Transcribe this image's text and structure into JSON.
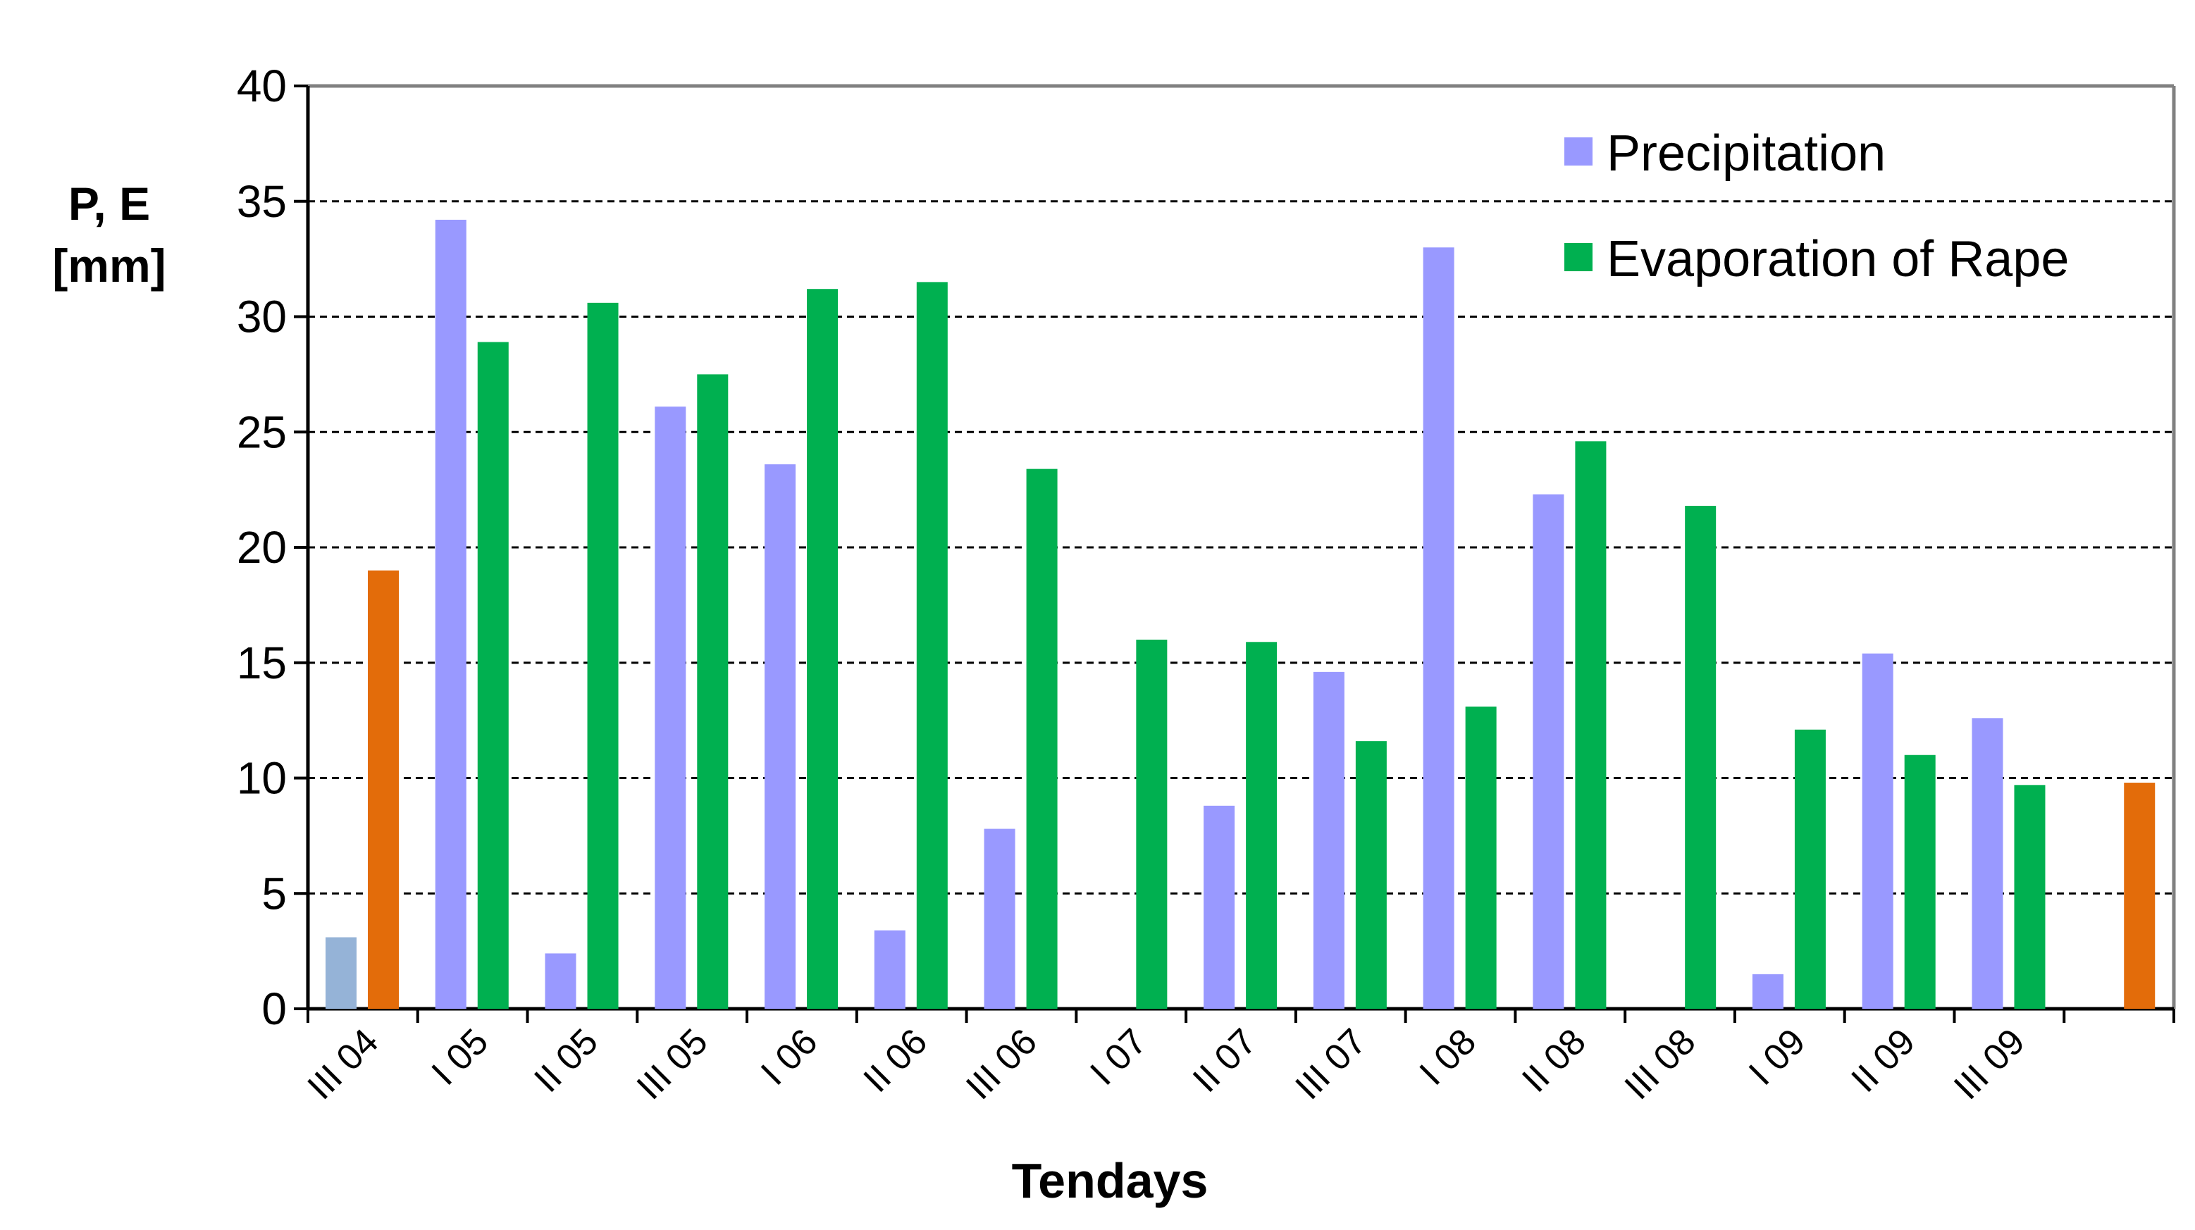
{
  "chart_data": {
    "type": "bar",
    "title": "",
    "xlabel": "Tendays",
    "ylabel_lines": [
      "P, E",
      "[mm]"
    ],
    "ylim": [
      0,
      40
    ],
    "yticks": [
      0,
      5,
      10,
      15,
      20,
      25,
      30,
      35,
      40
    ],
    "grid": true,
    "legend_position": "top-right",
    "categories": [
      "III 04",
      "I 05",
      "II 05",
      "III 05",
      "I 06",
      "II 06",
      "III 06",
      "I 07",
      "II 07",
      "III 07",
      "I 08",
      "II 08",
      "III 08",
      "I 09",
      "II 09",
      "III 09",
      ""
    ],
    "series": [
      {
        "name": "Precipitation",
        "color": "#9999FF",
        "values": [
          3.1,
          34.2,
          2.4,
          26.1,
          23.6,
          3.4,
          7.8,
          0,
          8.8,
          14.6,
          33.0,
          22.3,
          0,
          1.5,
          15.4,
          12.6,
          null
        ]
      },
      {
        "name": "Evaporation of Rape",
        "color": "#00B050",
        "values": [
          19.0,
          28.9,
          30.6,
          27.5,
          31.2,
          31.5,
          23.4,
          16.0,
          15.9,
          11.6,
          13.1,
          24.6,
          21.8,
          12.1,
          11.0,
          9.7,
          9.8
        ]
      }
    ],
    "highlight_colors": {
      "precipitation_first": "#95B3D7",
      "evaporation_first_last": "#E36C0A"
    },
    "grid_color": "#000000",
    "axis_color": "#808080"
  }
}
